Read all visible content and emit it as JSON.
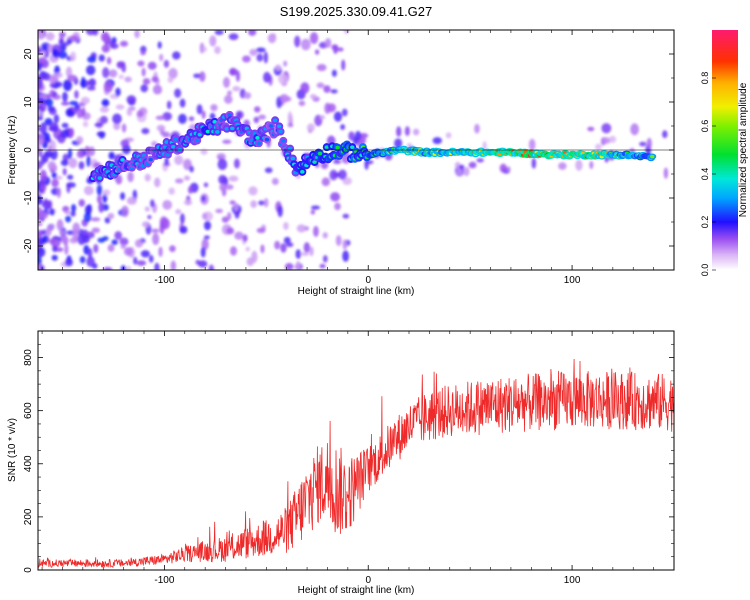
{
  "figure_title": "S199.2025.330.09.41.G27",
  "chart_data": [
    {
      "type": "heatmap",
      "title": "S199.2025.330.09.41.G27",
      "xlabel": "Height of straight line (km)",
      "ylabel": "Frequency (Hz)",
      "xlim": [
        -162,
        150
      ],
      "ylim": [
        -25,
        25
      ],
      "x_ticks": [
        -100,
        0,
        100
      ],
      "y_ticks": [
        -20,
        -10,
        0,
        10,
        20
      ],
      "x_tick_labels": [
        "-100",
        "0",
        "100"
      ],
      "y_tick_labels": [
        "-20",
        "-10",
        "0",
        "10",
        "20"
      ],
      "colorbar": {
        "label": "Normalized spectral amplitude",
        "range": [
          0,
          1
        ],
        "ticks": [
          0.0,
          0.2,
          0.4,
          0.6,
          0.8
        ],
        "tick_labels": [
          "0.0",
          "0.2",
          "0.4",
          "0.6",
          "0.8"
        ]
      },
      "ridge": [
        {
          "x": -135,
          "freq": -5,
          "amp": 0.4
        },
        {
          "x": -110,
          "freq": -2,
          "amp": 0.35
        },
        {
          "x": -95,
          "freq": 1,
          "amp": 0.35
        },
        {
          "x": -80,
          "freq": 4,
          "amp": 0.4
        },
        {
          "x": -68,
          "freq": 6,
          "amp": 0.35
        },
        {
          "x": -55,
          "freq": 2,
          "amp": 0.4
        },
        {
          "x": -45,
          "freq": 5,
          "amp": 0.3
        },
        {
          "x": -35,
          "freq": -4,
          "amp": 0.4
        },
        {
          "x": -25,
          "freq": -1,
          "amp": 0.45
        },
        {
          "x": -15,
          "freq": 0,
          "amp": 0.5
        },
        {
          "x": 0,
          "freq": -1,
          "amp": 0.55
        },
        {
          "x": 15,
          "freq": 0,
          "amp": 0.75
        },
        {
          "x": 30,
          "freq": -0.5,
          "amp": 0.7
        },
        {
          "x": 50,
          "freq": -0.5,
          "amp": 0.85
        },
        {
          "x": 70,
          "freq": -0.5,
          "amp": 0.95
        },
        {
          "x": 90,
          "freq": -1,
          "amp": 0.95
        },
        {
          "x": 110,
          "freq": -1,
          "amp": 0.9
        },
        {
          "x": 125,
          "freq": -1,
          "amp": 0.7
        },
        {
          "x": 140,
          "freq": -1.5,
          "amp": 0.6
        }
      ]
    },
    {
      "type": "line",
      "xlabel": "Height of straight line (km)",
      "ylabel": "SNR (10 * v/v)",
      "xlim": [
        -162,
        150
      ],
      "ylim": [
        0,
        900
      ],
      "x_ticks": [
        -100,
        0,
        100
      ],
      "y_ticks": [
        0,
        200,
        400,
        600,
        800
      ],
      "x_tick_labels": [
        "-100",
        "0",
        "100"
      ],
      "y_tick_labels": [
        "0",
        "200",
        "400",
        "600",
        "800"
      ],
      "series": [
        {
          "name": "SNR",
          "color": "#ee2a2a",
          "envelope": {
            "x": [
              -162,
              -140,
              -120,
              -100,
              -90,
              -80,
              -70,
              -60,
              -50,
              -40,
              -35,
              -30,
              -25,
              -20,
              -15,
              -10,
              -5,
              0,
              5,
              10,
              15,
              20,
              30,
              40,
              60,
              80,
              100,
              120,
              150
            ],
            "mean": [
              25,
              25,
              25,
              40,
              60,
              70,
              80,
              100,
              120,
              150,
              200,
              260,
              320,
              340,
              300,
              280,
              330,
              380,
              420,
              460,
              500,
              540,
              580,
              600,
              620,
              630,
              640,
              640,
              630
            ],
            "spread": [
              15,
              15,
              15,
              20,
              30,
              40,
              50,
              60,
              70,
              90,
              120,
              150,
              150,
              170,
              180,
              150,
              120,
              90,
              90,
              90,
              90,
              90,
              100,
              100,
              110,
              110,
              110,
              110,
              110
            ]
          },
          "peak_max": 900
        }
      ]
    }
  ]
}
